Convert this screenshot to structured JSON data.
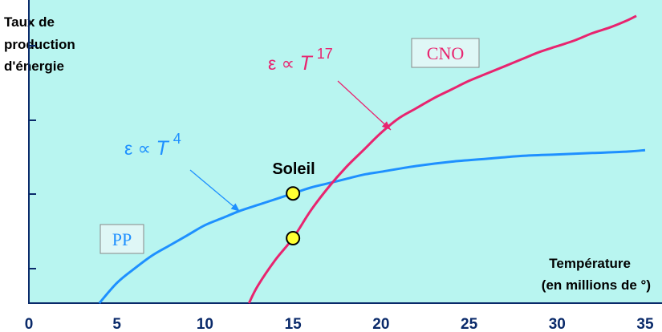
{
  "chart_data": {
    "type": "line",
    "ylabel_lines": [
      "Taux de",
      "production",
      "d'énergie"
    ],
    "xlabel_lines": [
      "Température",
      "(en millions de °)"
    ],
    "xlim": [
      0,
      35
    ],
    "xticks": [
      "0",
      "5",
      "10",
      "15",
      "20",
      "25",
      "30",
      "35"
    ],
    "y_scale": "relative (no numeric tick labels)",
    "series": [
      {
        "name": "PP",
        "color": "#1e90ff",
        "formula_prefix": "ε ∝ ",
        "formula_var": "T",
        "formula_exp": "4",
        "x": [
          4.0,
          5.0,
          6.0,
          7.0,
          8.0,
          9.0,
          10.0,
          11.0,
          12.0,
          13.0,
          14.0,
          15.0,
          16.0,
          17.0,
          18.0,
          19.0,
          20.0,
          22.0,
          24.0,
          26.0,
          28.0,
          30.0,
          32.0,
          34.0,
          35.0
        ],
        "y": [
          0.0,
          0.07,
          0.12,
          0.165,
          0.2,
          0.235,
          0.27,
          0.295,
          0.32,
          0.34,
          0.36,
          0.38,
          0.4,
          0.415,
          0.43,
          0.445,
          0.455,
          0.475,
          0.49,
          0.5,
          0.51,
          0.515,
          0.52,
          0.525,
          0.53
        ]
      },
      {
        "name": "CNO",
        "color": "#e8246f",
        "formula_prefix": "ε ∝ ",
        "formula_var": "T",
        "formula_exp": "17",
        "x": [
          12.5,
          13.0,
          14.0,
          15.0,
          16.0,
          17.0,
          18.0,
          19.0,
          20.0,
          21.0,
          22.0,
          23.0,
          24.0,
          25.0,
          26.0,
          27.0,
          28.0,
          29.0,
          30.0,
          31.0,
          32.0,
          33.0,
          34.0,
          34.5
        ],
        "y": [
          0.0,
          0.06,
          0.15,
          0.225,
          0.32,
          0.4,
          0.47,
          0.53,
          0.59,
          0.64,
          0.675,
          0.71,
          0.74,
          0.77,
          0.795,
          0.82,
          0.845,
          0.87,
          0.89,
          0.91,
          0.935,
          0.955,
          0.98,
          0.995
        ]
      }
    ],
    "annotations": {
      "sun_label": "Soleil",
      "sun_points": [
        {
          "series": "PP",
          "x": 15,
          "y": 0.38
        },
        {
          "series": "CNO",
          "x": 15,
          "y": 0.225
        }
      ]
    },
    "grid": false
  },
  "colors": {
    "plot_background": "#b8f5f0",
    "axis": "#0a2a6a",
    "tick_labels": "#0a2a6a",
    "marker_fill": "#ffff33",
    "label_box_fill": "#dff7f6"
  }
}
